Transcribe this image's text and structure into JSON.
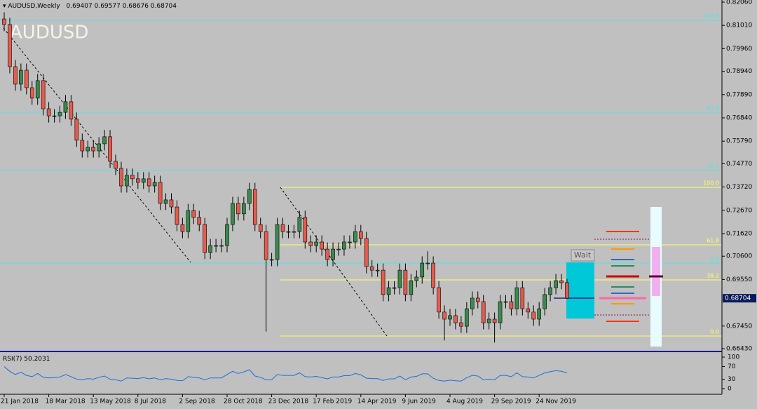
{
  "chart_data": {
    "type": "candlestick",
    "title": "AUDUSD",
    "symbol_label": "AUDUSD,Weekly",
    "categories": [
      "21 Jan 2018",
      null,
      null,
      null,
      null,
      null,
      null,
      null,
      "18 Mar 2018",
      null,
      null,
      null,
      null,
      null,
      null,
      null,
      "13 May 2018",
      null,
      null,
      null,
      null,
      null,
      null,
      null,
      "8 Jul 2018",
      null,
      null,
      null,
      null,
      null,
      null,
      null,
      "2 Sep 2018",
      null,
      null,
      null,
      null,
      null,
      null,
      null,
      "28 Oct 2018",
      null,
      null,
      null,
      null,
      null,
      null,
      null,
      "23 Dec 2018",
      null,
      null,
      null,
      null,
      null,
      null,
      null,
      "17 Feb 2019",
      null,
      null,
      null,
      null,
      null,
      null,
      null,
      "14 Apr 2019",
      null,
      null,
      null,
      null,
      null,
      null,
      null,
      "9 Jun 2019",
      null,
      null,
      null,
      null,
      null,
      null,
      null,
      "4 Aug 2019",
      null,
      null,
      null,
      null,
      null,
      null,
      null,
      "29 Sep 2019",
      null,
      null,
      null,
      null,
      null,
      null,
      null,
      "24 Nov 2019",
      null,
      null,
      null,
      null,
      null
    ],
    "open": [
      0.813,
      0.8105,
      0.7915,
      0.7836,
      0.7899,
      0.782,
      0.7773,
      0.7852,
      0.7725,
      0.7693,
      0.7693,
      0.7709,
      0.7757,
      0.7678,
      0.7583,
      0.7535,
      0.7551,
      0.7535,
      0.7567,
      0.7599,
      0.7488,
      0.7456,
      0.7377,
      0.7425,
      0.7409,
      0.7393,
      0.7409,
      0.7377,
      0.7393,
      0.7298,
      0.7314,
      0.7282,
      0.7203,
      0.7171,
      0.7266,
      0.7235,
      0.7203,
      0.7077,
      0.7108,
      0.7108,
      0.7108,
      0.7203,
      0.7298,
      0.7251,
      0.7298,
      0.7361,
      0.7203,
      0.7171,
      0.7045,
      0.7045,
      0.7203,
      0.7171,
      0.7171,
      0.7171,
      0.7235,
      0.7124,
      0.7108,
      0.7124,
      0.7092,
      0.7045,
      0.7092,
      0.7092,
      0.7124,
      0.7124,
      0.7171,
      0.714,
      0.7013,
      0.6997,
      0.6997,
      0.6887,
      0.6918,
      0.6918,
      0.6997,
      0.6887,
      0.695,
      0.6966,
      0.7029,
      0.7029,
      0.6918,
      0.6808,
      0.6776,
      0.6792,
      0.676,
      0.6744,
      0.6823,
      0.6871,
      0.6855,
      0.676,
      0.6776,
      0.676,
      0.6855,
      0.6855,
      0.6823,
      0.6918,
      0.6823,
      0.6808,
      0.6776,
      0.6823,
      0.6887,
      0.6918,
      0.695,
      0.69407
    ],
    "high": [
      0.816,
      0.8135,
      0.7945,
      0.7929,
      0.7929,
      0.785,
      0.7882,
      0.7882,
      0.7755,
      0.7723,
      0.7739,
      0.7787,
      0.7787,
      0.7708,
      0.7613,
      0.7581,
      0.7581,
      0.7597,
      0.7629,
      0.7629,
      0.7518,
      0.7486,
      0.7455,
      0.7455,
      0.7439,
      0.7439,
      0.7439,
      0.7423,
      0.7423,
      0.7344,
      0.7344,
      0.7312,
      0.7233,
      0.7296,
      0.7296,
      0.7265,
      0.7233,
      0.7138,
      0.7138,
      0.7138,
      0.7233,
      0.7328,
      0.7328,
      0.7328,
      0.7391,
      0.7391,
      0.7233,
      0.7201,
      0.7075,
      0.7233,
      0.7233,
      0.7201,
      0.7201,
      0.7265,
      0.7265,
      0.7154,
      0.7154,
      0.7154,
      0.7122,
      0.7122,
      0.7122,
      0.7154,
      0.7154,
      0.7201,
      0.7201,
      0.717,
      0.7043,
      0.7027,
      0.7027,
      0.6948,
      0.6948,
      0.7027,
      0.7027,
      0.698,
      0.6996,
      0.7059,
      0.7082,
      0.7059,
      0.6948,
      0.6838,
      0.6822,
      0.6822,
      0.679,
      0.6853,
      0.6901,
      0.6901,
      0.6885,
      0.6806,
      0.6806,
      0.6885,
      0.6885,
      0.6885,
      0.6948,
      0.6948,
      0.6853,
      0.6838,
      0.6853,
      0.6917,
      0.6948,
      0.698,
      0.698,
      0.69577
    ],
    "low": [
      0.8075,
      0.7885,
      0.7806,
      0.7806,
      0.779,
      0.7743,
      0.7743,
      0.7695,
      0.7663,
      0.7663,
      0.7663,
      0.7679,
      0.7648,
      0.7553,
      0.7505,
      0.7505,
      0.7505,
      0.7505,
      0.7537,
      0.7458,
      0.7426,
      0.7347,
      0.7347,
      0.7379,
      0.7363,
      0.7363,
      0.7347,
      0.7347,
      0.7268,
      0.7268,
      0.7252,
      0.7173,
      0.7141,
      0.7141,
      0.7205,
      0.7173,
      0.7047,
      0.7047,
      0.7078,
      0.7078,
      0.7078,
      0.7173,
      0.7221,
      0.7221,
      0.7268,
      0.7173,
      0.7141,
      0.672,
      0.7015,
      0.7015,
      0.7141,
      0.7141,
      0.7141,
      0.7141,
      0.7094,
      0.7078,
      0.7078,
      0.7062,
      0.7015,
      0.7015,
      0.7062,
      0.7062,
      0.7094,
      0.7094,
      0.711,
      0.6983,
      0.6967,
      0.6967,
      0.6857,
      0.6857,
      0.6888,
      0.6888,
      0.6857,
      0.6857,
      0.692,
      0.6936,
      0.6999,
      0.6888,
      0.6778,
      0.668,
      0.6746,
      0.673,
      0.6714,
      0.6714,
      0.6793,
      0.6825,
      0.673,
      0.673,
      0.6671,
      0.673,
      0.6825,
      0.6793,
      0.6793,
      0.6793,
      0.6778,
      0.6746,
      0.6746,
      0.6793,
      0.6857,
      0.6888,
      0.6911,
      0.68676
    ],
    "close": [
      0.8105,
      0.7915,
      0.7836,
      0.7899,
      0.782,
      0.7773,
      0.7852,
      0.7725,
      0.7693,
      0.7693,
      0.7709,
      0.7757,
      0.7678,
      0.7583,
      0.7535,
      0.7551,
      0.7535,
      0.7567,
      0.7599,
      0.7488,
      0.7456,
      0.7377,
      0.7425,
      0.7409,
      0.7393,
      0.7409,
      0.7377,
      0.7393,
      0.7298,
      0.7314,
      0.7282,
      0.7203,
      0.7171,
      0.7266,
      0.7235,
      0.7203,
      0.7077,
      0.7108,
      0.7108,
      0.7108,
      0.7203,
      0.7298,
      0.7251,
      0.7298,
      0.7361,
      0.7203,
      0.7171,
      0.7045,
      0.7045,
      0.7203,
      0.7171,
      0.7171,
      0.7171,
      0.7235,
      0.7124,
      0.7108,
      0.7124,
      0.7092,
      0.7045,
      0.7092,
      0.7092,
      0.7124,
      0.7124,
      0.7171,
      0.714,
      0.7013,
      0.6997,
      0.6997,
      0.6887,
      0.6918,
      0.6918,
      0.6997,
      0.6887,
      0.695,
      0.6966,
      0.7029,
      0.7029,
      0.6918,
      0.6808,
      0.6776,
      0.6792,
      0.676,
      0.6744,
      0.6823,
      0.6871,
      0.6855,
      0.676,
      0.6776,
      0.676,
      0.6855,
      0.6855,
      0.6823,
      0.6918,
      0.6823,
      0.6808,
      0.6776,
      0.6823,
      0.6887,
      0.6918,
      0.695,
      0.69407,
      0.68704
    ],
    "up_color": "#3a8a4c",
    "down_color": "#e85a4c",
    "ylim": [
      0.6643,
      0.8206
    ],
    "yticks": [
      {
        "value": 0.8206,
        "label": "0.82060"
      },
      {
        "value": 0.8101,
        "label": "0.81010"
      },
      {
        "value": 0.7996,
        "label": "0.79960"
      },
      {
        "value": 0.7894,
        "label": "0.78940"
      },
      {
        "value": 0.7789,
        "label": "0.77890"
      },
      {
        "value": 0.7684,
        "label": "0.76840"
      },
      {
        "value": 0.7579,
        "label": "0.75790"
      },
      {
        "value": 0.7477,
        "label": "0.74770"
      },
      {
        "value": 0.7372,
        "label": "0.73720"
      },
      {
        "value": 0.7267,
        "label": "0.72670"
      },
      {
        "value": 0.7162,
        "label": "0.71620"
      },
      {
        "value": 0.706,
        "label": "0.70600"
      },
      {
        "value": 0.6955,
        "label": "0.69550"
      },
      {
        "value": 0.6745,
        "label": "0.67450"
      },
      {
        "value": 0.6643,
        "label": "0.66430"
      }
    ],
    "fib_a": {
      "color": "#4fe3e3",
      "levels": [
        {
          "label": "100.0",
          "value": 0.81237
        },
        {
          "label": "61.8",
          "value": 0.77093
        },
        {
          "label": "38.2",
          "value": 0.74466
        },
        {
          "label": "0.0",
          "value": 0.7029
        }
      ]
    },
    "fib_b": {
      "color": "#ffff66",
      "levels": [
        {
          "label": "100.0",
          "value": 0.73707
        },
        {
          "label": "61.8",
          "value": 0.71113
        },
        {
          "label": "38.2",
          "value": 0.69531
        },
        {
          "label": "0.0",
          "value": 0.66999
        }
      ]
    },
    "signal": "Wait",
    "rsi": {
      "label": "RSI(7)",
      "color": "#1e6fd9",
      "ylim": [
        0,
        100
      ],
      "yticks": [
        100,
        70,
        30,
        0
      ],
      "values": [
        70,
        55,
        45,
        52,
        42,
        38,
        48,
        36,
        34,
        35,
        37,
        45,
        38,
        30,
        28,
        32,
        30,
        36,
        40,
        30,
        28,
        24,
        34,
        33,
        32,
        35,
        31,
        34,
        28,
        32,
        30,
        26,
        25,
        38,
        36,
        34,
        28,
        34,
        34,
        34,
        45,
        55,
        48,
        53,
        60,
        40,
        36,
        28,
        28,
        45,
        42,
        42,
        42,
        50,
        38,
        37,
        39,
        35,
        31,
        37,
        37,
        41,
        41,
        48,
        44,
        33,
        32,
        32,
        26,
        31,
        31,
        40,
        28,
        37,
        39,
        47,
        47,
        33,
        26,
        24,
        27,
        25,
        24,
        35,
        42,
        40,
        28,
        30,
        28,
        42,
        42,
        38,
        50,
        38,
        37,
        34,
        42,
        50,
        54,
        57,
        55,
        50.2031
      ]
    }
  }
}
